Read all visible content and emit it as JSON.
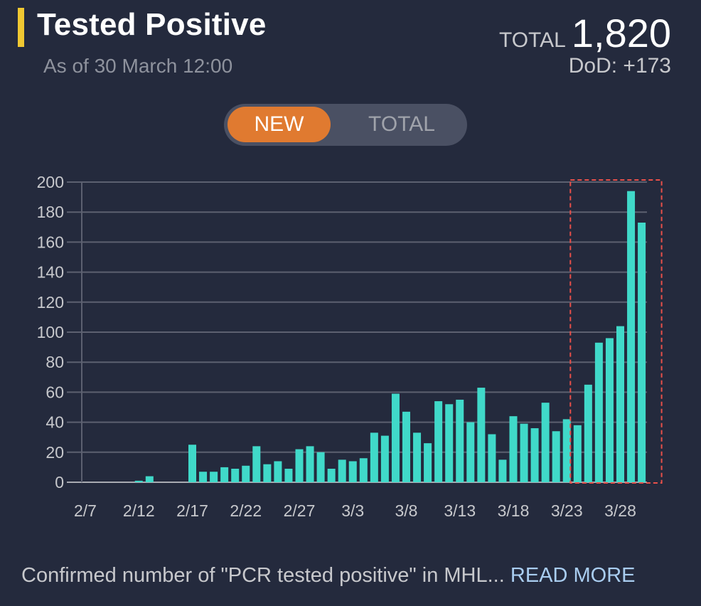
{
  "header": {
    "title": "Tested Positive",
    "subtitle": "As of 30 March 12:00",
    "total_label": "TOTAL",
    "total_value": "1,820",
    "dod": "DoD: +173"
  },
  "toggle": {
    "options": [
      "NEW",
      "TOTAL"
    ],
    "selected": "NEW"
  },
  "colors": {
    "accent": "#f0c832",
    "bar": "#40d9c9",
    "toggle_active": "#e07a30",
    "highlight_box": "#e8504a",
    "link": "#a9cdf0"
  },
  "footer": {
    "text": "Confirmed number of \"PCR tested positive\" in MHL...",
    "link": "READ MORE"
  },
  "chart_data": {
    "type": "bar",
    "title": "",
    "xlabel": "",
    "ylabel": "",
    "ylim": [
      0,
      200
    ],
    "yticks": [
      0,
      20,
      40,
      60,
      80,
      100,
      120,
      140,
      160,
      180,
      200
    ],
    "grid": true,
    "xtick_labels": [
      "2/7",
      "2/12",
      "2/17",
      "2/22",
      "2/27",
      "3/3",
      "3/8",
      "3/13",
      "3/18",
      "3/23",
      "3/28"
    ],
    "categories": [
      "2/7",
      "2/8",
      "2/9",
      "2/10",
      "2/11",
      "2/12",
      "2/13",
      "2/14",
      "2/15",
      "2/16",
      "2/17",
      "2/18",
      "2/19",
      "2/20",
      "2/21",
      "2/22",
      "2/23",
      "2/24",
      "2/25",
      "2/26",
      "2/27",
      "2/28",
      "2/29",
      "3/1",
      "3/2",
      "3/3",
      "3/4",
      "3/5",
      "3/6",
      "3/7",
      "3/8",
      "3/9",
      "3/10",
      "3/11",
      "3/12",
      "3/13",
      "3/14",
      "3/15",
      "3/16",
      "3/17",
      "3/18",
      "3/19",
      "3/20",
      "3/21",
      "3/22",
      "3/23",
      "3/24",
      "3/25",
      "3/26",
      "3/27",
      "3/28",
      "3/29",
      "3/30"
    ],
    "values": [
      0,
      0,
      0,
      0,
      0,
      1,
      4,
      0,
      0,
      0,
      25,
      7,
      7,
      10,
      9,
      11,
      24,
      12,
      14,
      9,
      22,
      24,
      20,
      9,
      15,
      14,
      16,
      33,
      31,
      59,
      47,
      33,
      26,
      54,
      52,
      55,
      40,
      63,
      32,
      15,
      44,
      39,
      36,
      53,
      34,
      42,
      38,
      65,
      93,
      96,
      104,
      194,
      173
    ],
    "highlight_range": [
      "3/24",
      "3/30"
    ]
  }
}
